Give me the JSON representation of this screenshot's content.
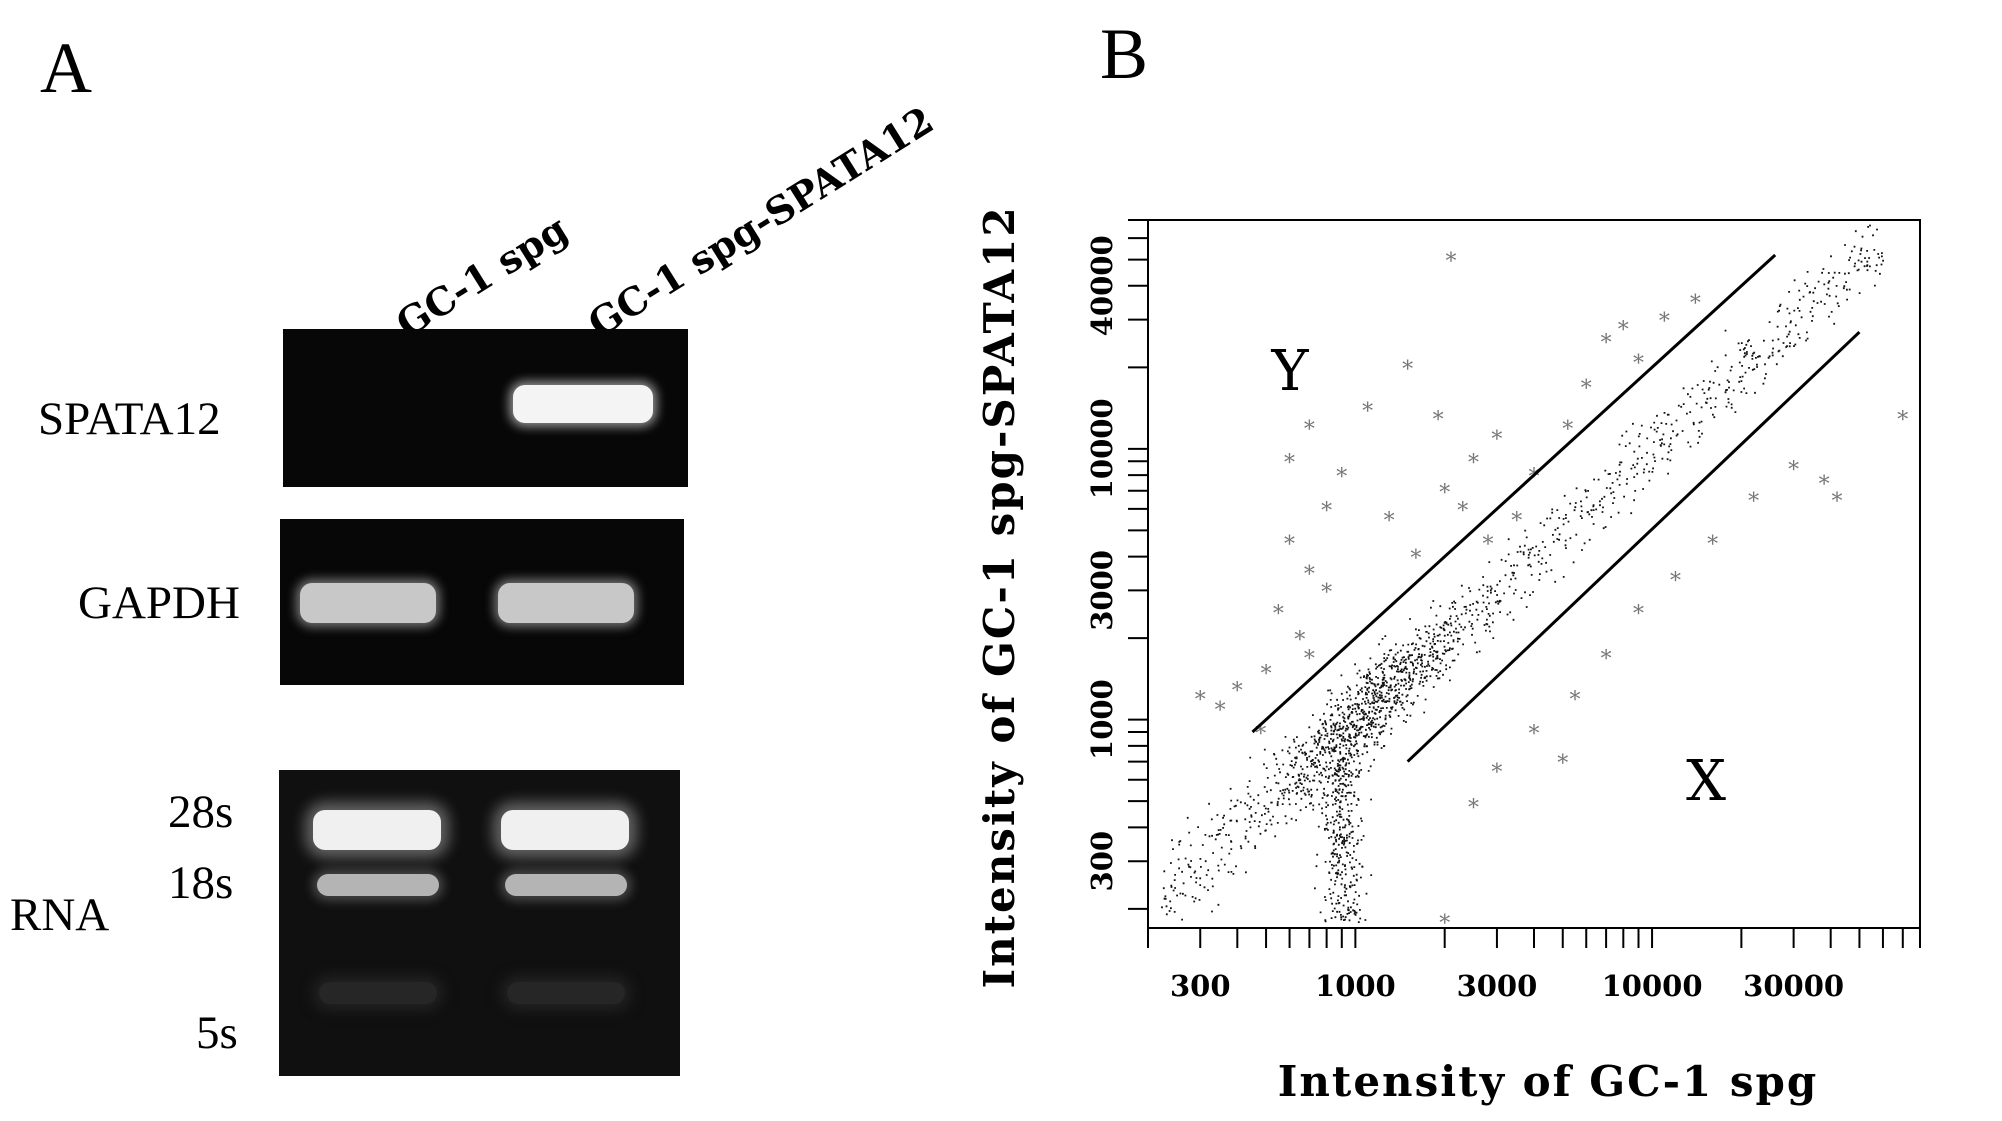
{
  "panel_a": {
    "letter": "A",
    "lanes": [
      "GC-1 spg",
      "GC-1 spg-SPATA12"
    ],
    "rows": {
      "spata12": "SPATA12",
      "gapdh": "GAPDH",
      "rna": "RNA"
    },
    "rrna_bands": [
      "28s",
      "18s",
      "5s"
    ]
  },
  "panel_b": {
    "letter": "B",
    "region_labels": [
      "Y",
      "X"
    ]
  },
  "chart_data": {
    "type": "scatter",
    "xlabel": "Intensity of GC-1 spg",
    "ylabel": "Intensity of GC-1 spg-SPATA12",
    "x_scale": "log",
    "y_scale": "log",
    "xlim": [
      200,
      80000
    ],
    "ylim": [
      170,
      70000
    ],
    "x_ticks": [
      300,
      1000,
      3000,
      10000,
      30000
    ],
    "y_ticks": [
      300,
      1000,
      3000,
      10000,
      40000
    ],
    "x_tick_labels": [
      "300",
      "1000",
      "3000",
      "10000",
      "30000"
    ],
    "y_tick_labels": [
      "300",
      "1000",
      "3000",
      "10000",
      "40000"
    ],
    "grid": false,
    "cutoff_lines": [
      {
        "name": "upper",
        "points": [
          [
            450,
            900
          ],
          [
            26000,
            52000
          ]
        ]
      },
      {
        "name": "lower",
        "points": [
          [
            1500,
            700
          ],
          [
            50000,
            27000
          ]
        ]
      }
    ],
    "point_cloud": {
      "center_ratio": 1.0,
      "x_range": [
        220,
        60000
      ]
    },
    "outliers": [
      [
        2100,
        50000
      ],
      [
        1500,
        20000
      ],
      [
        1100,
        14000
      ],
      [
        700,
        12000
      ],
      [
        600,
        9000
      ],
      [
        900,
        8000
      ],
      [
        800,
        6000
      ],
      [
        600,
        4500
      ],
      [
        700,
        3500
      ],
      [
        800,
        3000
      ],
      [
        550,
        2500
      ],
      [
        650,
        2000
      ],
      [
        700,
        1700
      ],
      [
        500,
        1500
      ],
      [
        400,
        1300
      ],
      [
        300,
        1200
      ],
      [
        350,
        1100
      ],
      [
        480,
        900
      ],
      [
        1600,
        4000
      ],
      [
        1300,
        5500
      ],
      [
        2000,
        7000
      ],
      [
        2500,
        9000
      ],
      [
        3000,
        11000
      ],
      [
        1900,
        13000
      ],
      [
        2300,
        6000
      ],
      [
        2800,
        4500
      ],
      [
        3500,
        5500
      ],
      [
        4000,
        8000
      ],
      [
        5200,
        12000
      ],
      [
        6000,
        17000
      ],
      [
        7000,
        25000
      ],
      [
        8000,
        28000
      ],
      [
        11000,
        30000
      ],
      [
        14000,
        35000
      ],
      [
        9000,
        21000
      ],
      [
        3000,
        650
      ],
      [
        2500,
        480
      ],
      [
        4000,
        900
      ],
      [
        5500,
        1200
      ],
      [
        7000,
        1700
      ],
      [
        9000,
        2500
      ],
      [
        12000,
        3300
      ],
      [
        16000,
        4500
      ],
      [
        22000,
        6500
      ],
      [
        30000,
        8500
      ],
      [
        38000,
        7500
      ],
      [
        42000,
        6500
      ],
      [
        70000,
        13000
      ],
      [
        5000,
        700
      ],
      [
        2000,
        180
      ]
    ]
  }
}
